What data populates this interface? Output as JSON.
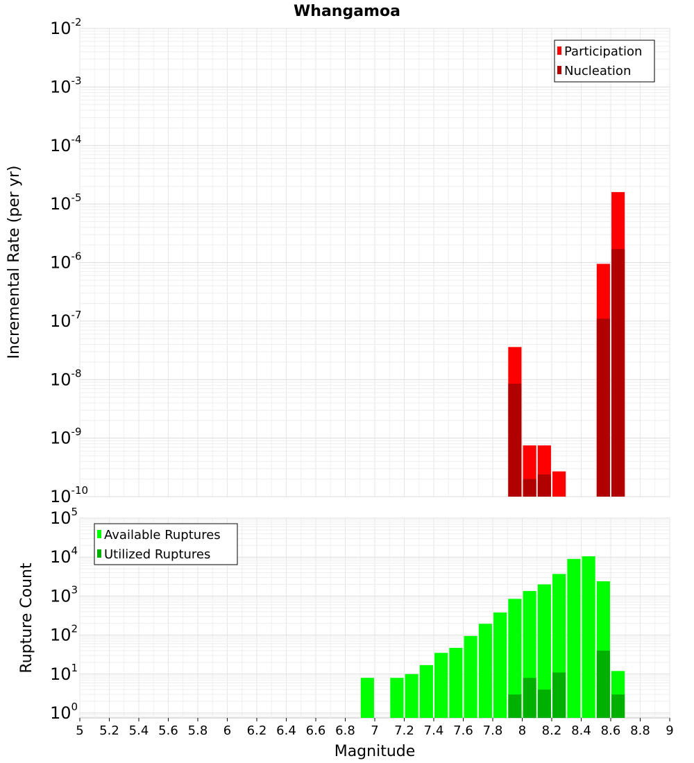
{
  "chart_data": [
    {
      "type": "bar",
      "title": "Whangamoa",
      "ylabel": "Incremental Rate (per yr)",
      "xlabel": "",
      "yscale": "log",
      "ylim": [
        1e-10,
        0.01
      ],
      "xlim": [
        5,
        9
      ],
      "grid": true,
      "legend_position": "top-right",
      "series": [
        {
          "name": "Participation",
          "color": "#ff0000",
          "points": [
            {
              "x": 7.95,
              "y": 3.6e-08
            },
            {
              "x": 8.05,
              "y": 7.5e-10
            },
            {
              "x": 8.15,
              "y": 7.5e-10
            },
            {
              "x": 8.25,
              "y": 2.7e-10
            },
            {
              "x": 8.55,
              "y": 9.5e-07
            },
            {
              "x": 8.65,
              "y": 1.6e-05
            }
          ]
        },
        {
          "name": "Nucleation",
          "color": "#b00000",
          "points": [
            {
              "x": 7.95,
              "y": 8.5e-09
            },
            {
              "x": 8.05,
              "y": 2e-10
            },
            {
              "x": 8.15,
              "y": 2.4e-10
            },
            {
              "x": 8.55,
              "y": 1.1e-07
            },
            {
              "x": 8.65,
              "y": 1.7e-06
            }
          ]
        }
      ]
    },
    {
      "type": "bar",
      "title": "",
      "ylabel": "Rupture Count",
      "xlabel": "Magnitude",
      "yscale": "log",
      "ylim": [
        0.75,
        100000
      ],
      "xlim": [
        5,
        9
      ],
      "xticks": [
        "5",
        "5.2",
        "5.4",
        "5.6",
        "5.8",
        "6",
        "6.2",
        "6.4",
        "6.6",
        "6.8",
        "7",
        "7.2",
        "7.4",
        "7.6",
        "7.8",
        "8",
        "8.2",
        "8.4",
        "8.6",
        "8.8",
        "9"
      ],
      "grid": true,
      "legend_position": "top-left",
      "series": [
        {
          "name": "Available Ruptures",
          "color": "#00ff00",
          "points": [
            {
              "x": 6.95,
              "y": 8
            },
            {
              "x": 7.15,
              "y": 8
            },
            {
              "x": 7.25,
              "y": 10
            },
            {
              "x": 7.35,
              "y": 17
            },
            {
              "x": 7.45,
              "y": 35
            },
            {
              "x": 7.55,
              "y": 47
            },
            {
              "x": 7.65,
              "y": 95
            },
            {
              "x": 7.75,
              "y": 195
            },
            {
              "x": 7.85,
              "y": 380
            },
            {
              "x": 7.95,
              "y": 850
            },
            {
              "x": 8.05,
              "y": 1350
            },
            {
              "x": 8.15,
              "y": 2000
            },
            {
              "x": 8.25,
              "y": 3700
            },
            {
              "x": 8.35,
              "y": 9000
            },
            {
              "x": 8.45,
              "y": 10500
            },
            {
              "x": 8.55,
              "y": 2400
            },
            {
              "x": 8.65,
              "y": 12
            }
          ]
        },
        {
          "name": "Utilized Ruptures",
          "color": "#00b000",
          "points": [
            {
              "x": 7.95,
              "y": 3
            },
            {
              "x": 8.05,
              "y": 8
            },
            {
              "x": 8.15,
              "y": 4
            },
            {
              "x": 8.25,
              "y": 11
            },
            {
              "x": 8.55,
              "y": 40
            },
            {
              "x": 8.65,
              "y": 3
            }
          ]
        }
      ]
    }
  ]
}
